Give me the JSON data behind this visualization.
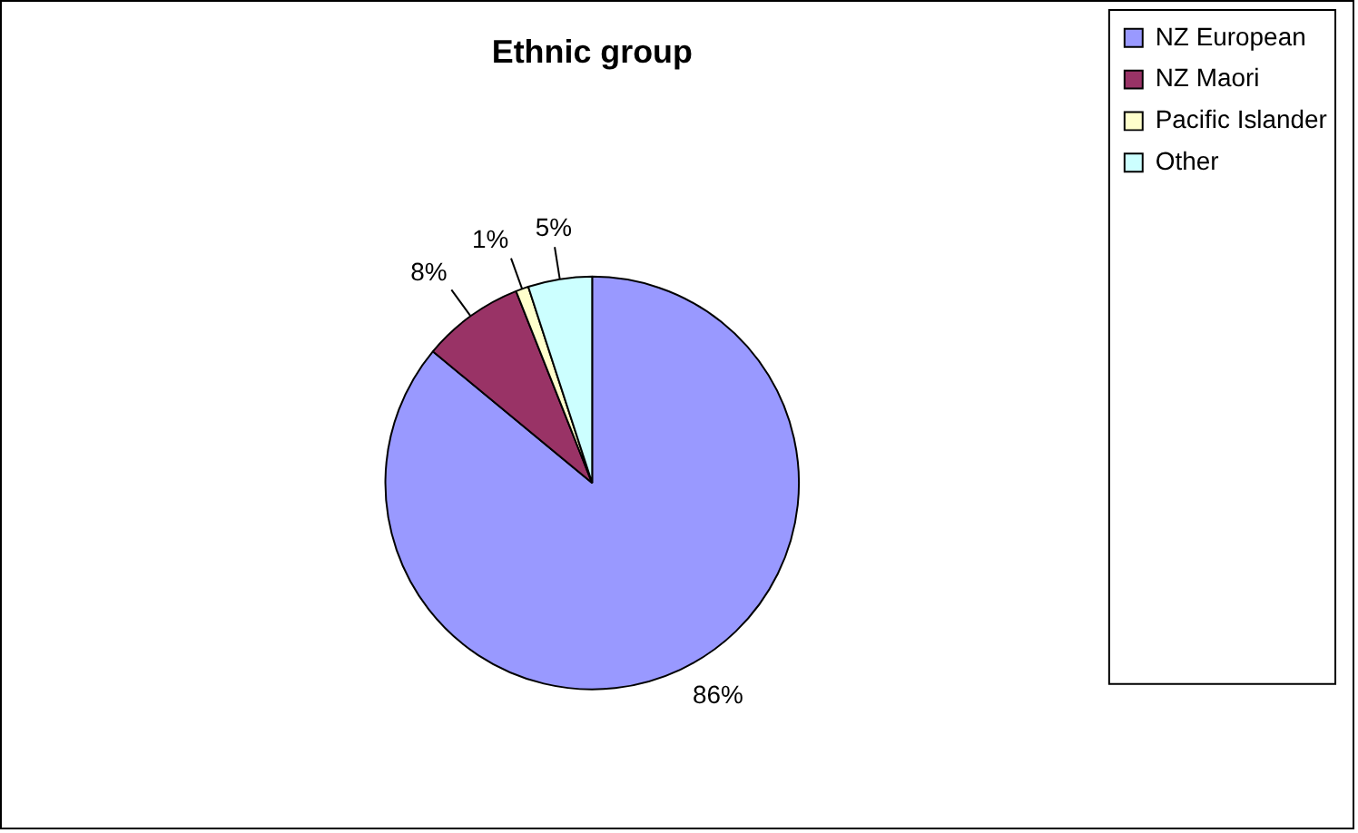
{
  "chart_data": {
    "type": "pie",
    "title": "Ethnic group",
    "categories": [
      "NZ European",
      "NZ Maori",
      "Pacific Islander",
      "Other"
    ],
    "values": [
      86,
      8,
      1,
      5
    ],
    "value_labels": [
      "86%",
      "8%",
      "1%",
      "5%"
    ],
    "colors": [
      "#9999ff",
      "#993366",
      "#ffffcc",
      "#ccffff"
    ],
    "legend": "top right"
  }
}
